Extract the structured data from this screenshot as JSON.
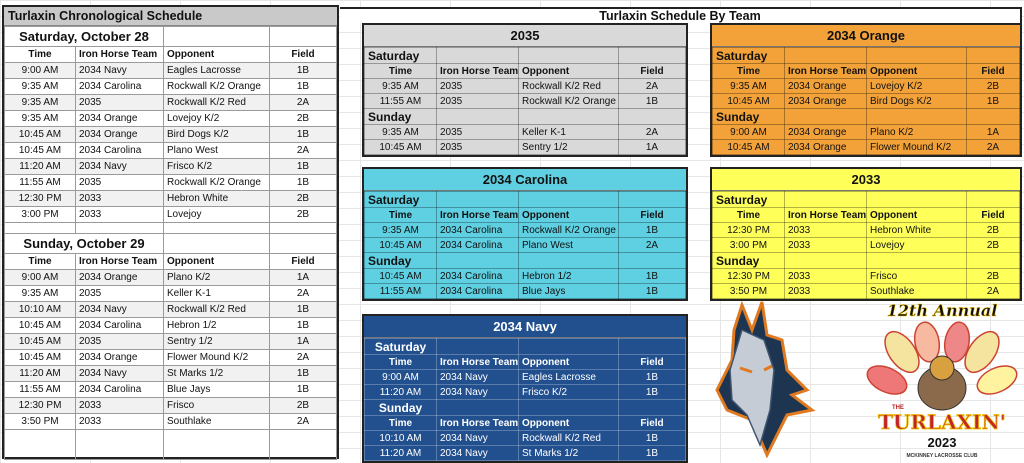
{
  "chronological": {
    "title": "Turlaxin Chronological Schedule",
    "columns": [
      "Time",
      "Iron Horse Team",
      "Opponent",
      "Field"
    ],
    "days": [
      {
        "label": "Saturday, October 28",
        "games": [
          [
            "9:00 AM",
            "2034 Navy",
            "Eagles Lacrosse",
            "1B"
          ],
          [
            "9:35 AM",
            "2034 Carolina",
            "Rockwall K/2 Orange",
            "1B"
          ],
          [
            "9:35 AM",
            "2035",
            "Rockwall K/2 Red",
            "2A"
          ],
          [
            "9:35 AM",
            "2034 Orange",
            "Lovejoy K/2",
            "2B"
          ],
          [
            "10:45 AM",
            "2034 Orange",
            "Bird Dogs K/2",
            "1B"
          ],
          [
            "10:45 AM",
            "2034 Carolina",
            "Plano West",
            "2A"
          ],
          [
            "11:20 AM",
            "2034 Navy",
            "Frisco K/2",
            "1B"
          ],
          [
            "11:55 AM",
            "2035",
            "Rockwall K/2 Orange",
            "1B"
          ],
          [
            "12:30 PM",
            "2033",
            "Hebron White",
            "2B"
          ],
          [
            "3:00 PM",
            "2033",
            "Lovejoy",
            "2B"
          ]
        ]
      },
      {
        "label": "Sunday, October 29",
        "games": [
          [
            "9:00 AM",
            "2034 Orange",
            "Plano K/2",
            "1A"
          ],
          [
            "9:35 AM",
            "2035",
            "Keller K-1",
            "2A"
          ],
          [
            "10:10 AM",
            "2034 Navy",
            "Rockwall K/2 Red",
            "1B"
          ],
          [
            "10:45 AM",
            "2034 Carolina",
            "Hebron 1/2",
            "1B"
          ],
          [
            "10:45 AM",
            "2035",
            "Sentry 1/2",
            "1A"
          ],
          [
            "10:45 AM",
            "2034 Orange",
            "Flower Mound K/2",
            "2A"
          ],
          [
            "11:20 AM",
            "2034 Navy",
            "St Marks 1/2",
            "1B"
          ],
          [
            "11:55 AM",
            "2034 Carolina",
            "Blue Jays",
            "1B"
          ],
          [
            "12:30 PM",
            "2033",
            "Frisco",
            "2B"
          ],
          [
            "3:50 PM",
            "2033",
            "Southlake",
            "2A"
          ]
        ]
      }
    ]
  },
  "by_team": {
    "title": "Turlaxin Schedule By Team",
    "columns": [
      "Time",
      "Iron Horse Team",
      "Opponent",
      "Field"
    ],
    "teams": [
      {
        "name": "2035",
        "color": "#d9d9d9",
        "text_color": "#111",
        "days": [
          {
            "label": "Saturday",
            "games": [
              [
                "9:35 AM",
                "2035",
                "Rockwall K/2 Red",
                "2A"
              ],
              [
                "11:55 AM",
                "2035",
                "Rockwall K/2 Orange",
                "1B"
              ]
            ]
          },
          {
            "label": "Sunday",
            "games": [
              [
                "9:35 AM",
                "2035",
                "Keller K-1",
                "2A"
              ],
              [
                "10:45 AM",
                "2035",
                "Sentry 1/2",
                "1A"
              ]
            ]
          }
        ]
      },
      {
        "name": "2034 Orange",
        "color": "#f3a23a",
        "text_color": "#111",
        "days": [
          {
            "label": "Saturday",
            "games": [
              [
                "9:35 AM",
                "2034 Orange",
                "Lovejoy K/2",
                "2B"
              ],
              [
                "10:45 AM",
                "2034 Orange",
                "Bird Dogs K/2",
                "1B"
              ]
            ]
          },
          {
            "label": "Sunday",
            "games": [
              [
                "9:00 AM",
                "2034 Orange",
                "Plano K/2",
                "1A"
              ],
              [
                "10:45 AM",
                "2034 Orange",
                "Flower Mound K/2",
                "2A"
              ]
            ]
          }
        ]
      },
      {
        "name": "2034 Carolina",
        "color": "#5fd0e2",
        "text_color": "#111",
        "days": [
          {
            "label": "Saturday",
            "games": [
              [
                "9:35 AM",
                "2034 Carolina",
                "Rockwall K/2 Orange",
                "1B"
              ],
              [
                "10:45 AM",
                "2034 Carolina",
                "Plano West",
                "2A"
              ]
            ]
          },
          {
            "label": "Sunday",
            "games": [
              [
                "10:45 AM",
                "2034 Carolina",
                "Hebron 1/2",
                "1B"
              ],
              [
                "11:55 AM",
                "2034 Carolina",
                "Blue Jays",
                "1B"
              ]
            ]
          }
        ]
      },
      {
        "name": "2033",
        "color": "#ffff5a",
        "text_color": "#111",
        "days": [
          {
            "label": "Saturday",
            "games": [
              [
                "12:30 PM",
                "2033",
                "Hebron White",
                "2B"
              ],
              [
                "3:00 PM",
                "2033",
                "Lovejoy",
                "2B"
              ]
            ]
          },
          {
            "label": "Sunday",
            "games": [
              [
                "12:30 PM",
                "2033",
                "Frisco",
                "2B"
              ],
              [
                "3:50 PM",
                "2033",
                "Southlake",
                "2A"
              ]
            ]
          }
        ]
      },
      {
        "name": "2034 Navy",
        "color": "#22508f",
        "text_color": "#ffffff",
        "repeat_header": true,
        "days": [
          {
            "label": "Saturday",
            "games": [
              [
                "9:00 AM",
                "2034 Navy",
                "Eagles Lacrosse",
                "1B"
              ],
              [
                "11:20 AM",
                "2034 Navy",
                "Frisco K/2",
                "1B"
              ]
            ]
          },
          {
            "label": "Sunday",
            "games": [
              [
                "10:10 AM",
                "2034 Navy",
                "Rockwall K/2 Red",
                "1B"
              ],
              [
                "11:20 AM",
                "2034 Navy",
                "St Marks 1/2",
                "1B"
              ]
            ]
          }
        ]
      }
    ]
  },
  "logos": {
    "turlaxin": {
      "line1": "12th Annual",
      "line2": "THE",
      "line3": "TURLAXIN'",
      "line4": "2023",
      "line5": "MCKINNEY LACROSSE CLUB"
    }
  }
}
